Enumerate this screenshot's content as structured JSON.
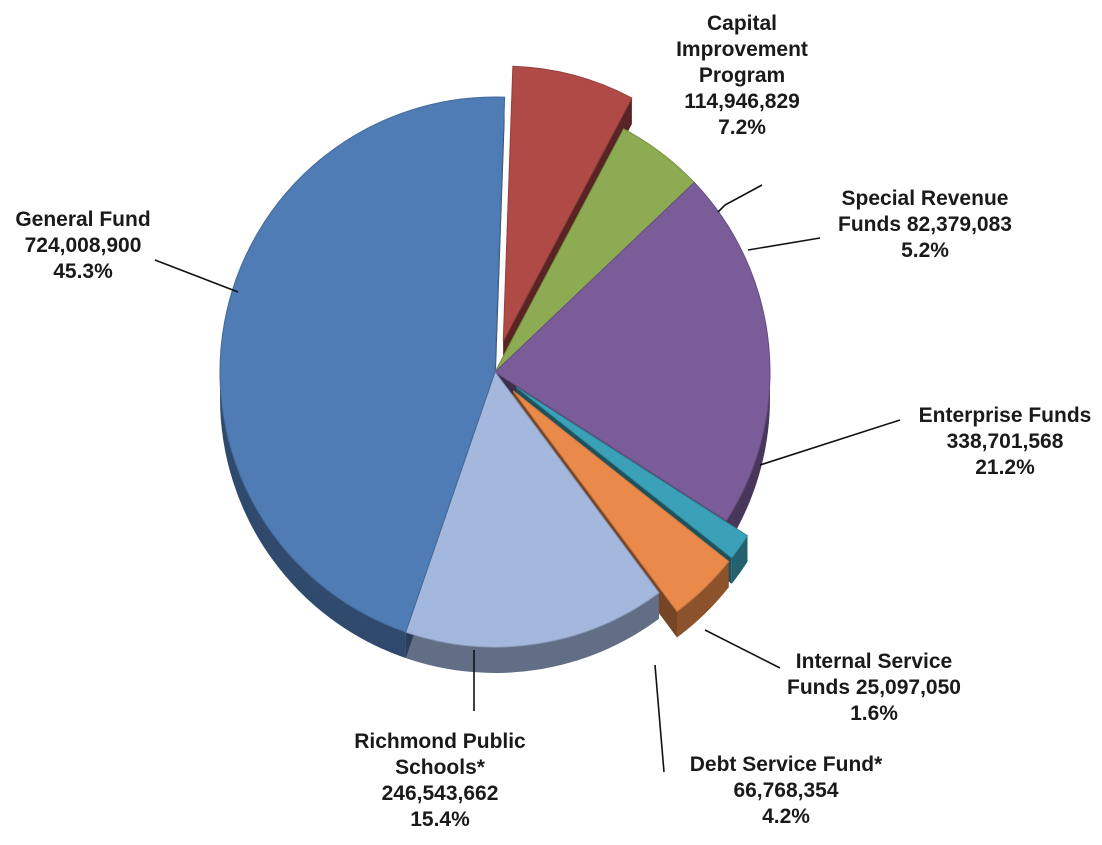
{
  "chart_data": {
    "type": "pie",
    "title": "",
    "slices": [
      {
        "id": "cip",
        "label_lines": [
          "Capital",
          "Improvement",
          "Program",
          "114,946,829",
          "7.2%"
        ],
        "value": 114946829,
        "percent": 7.2,
        "color": "#b04a47"
      },
      {
        "id": "special",
        "label_lines": [
          "Special Revenue",
          "Funds 82,379,083",
          "5.2%"
        ],
        "value": 82379083,
        "percent": 5.2,
        "color": "#8dab52"
      },
      {
        "id": "enterprise",
        "label_lines": [
          "Enterprise Funds",
          "338,701,568",
          "21.2%"
        ],
        "value": 338701568,
        "percent": 21.2,
        "color": "#7a5c98"
      },
      {
        "id": "internal",
        "label_lines": [
          "Internal Service",
          "Funds 25,097,050",
          "1.6%"
        ],
        "value": 25097050,
        "percent": 1.6,
        "color": "#3aa1b8"
      },
      {
        "id": "debt",
        "label_lines": [
          "Debt Service Fund*",
          "66,768,354",
          "4.2%"
        ],
        "value": 66768354,
        "percent": 4.2,
        "color": "#e9894a"
      },
      {
        "id": "rps",
        "label_lines": [
          "Richmond Public",
          "Schools*",
          "246,543,662",
          "15.4%"
        ],
        "value": 246543662,
        "percent": 15.4,
        "color": "#a4b8dd"
      },
      {
        "id": "general",
        "label_lines": [
          "General Fund",
          "724,008,900",
          "45.3%"
        ],
        "value": 724008900,
        "percent": 45.3,
        "color": "#4f7cb4"
      }
    ]
  }
}
